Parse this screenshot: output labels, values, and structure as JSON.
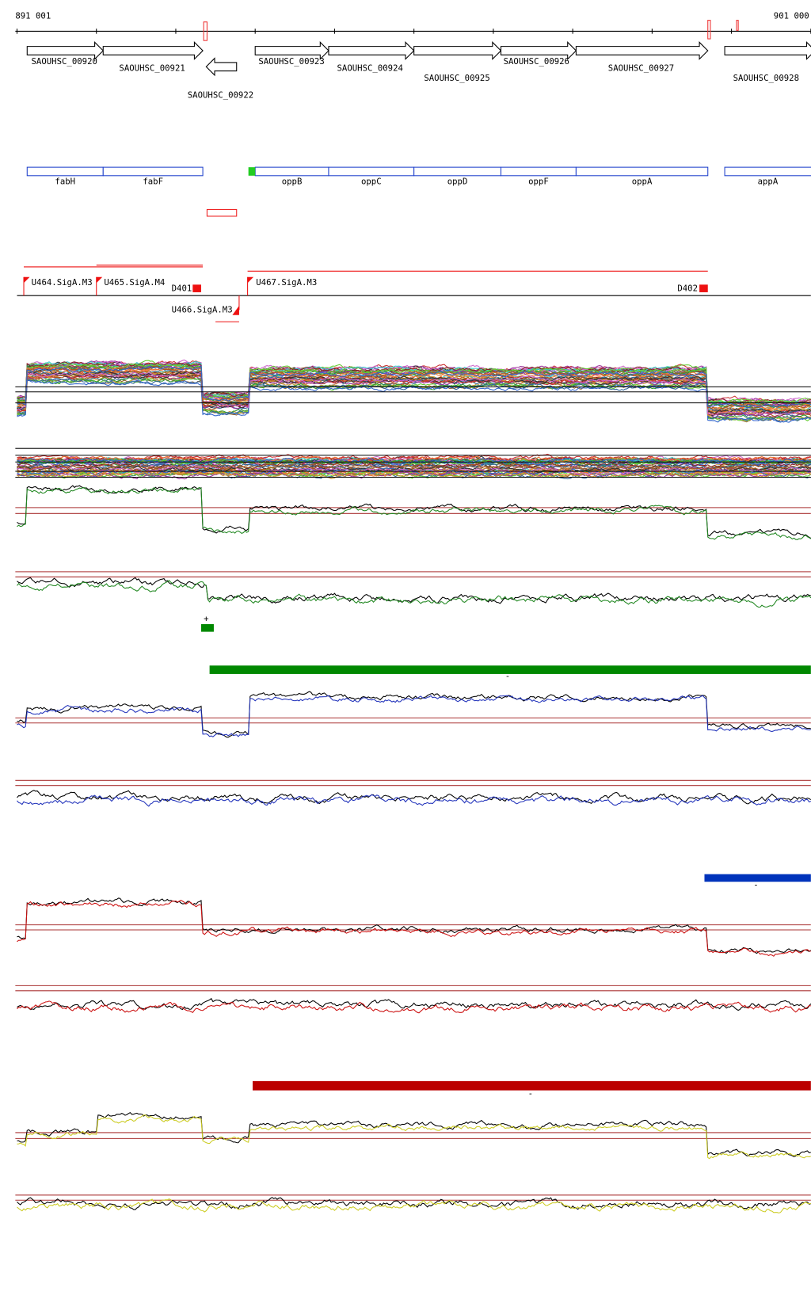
{
  "scale": {
    "start": "891 001",
    "end": "901 000"
  },
  "genes": [
    "SAOUHSC_00920",
    "SAOUHSC_00921",
    "SAOUHSC_00922",
    "SAOUHSC_00923",
    "SAOUHSC_00924",
    "SAOUHSC_00925",
    "SAOUHSC_00926",
    "SAOUHSC_00927",
    "SAOUHSC_00928"
  ],
  "gene_names": [
    "fabH",
    "fabF",
    "oppB",
    "oppC",
    "oppD",
    "oppF",
    "oppA",
    "appA"
  ],
  "promoters": [
    "U464.SigA.M3",
    "U465.SigA.M4",
    "U466.SigA.M3",
    "U467.SigA.M3"
  ],
  "terminators": [
    "D401",
    "D402"
  ],
  "strand_marks": [
    "+",
    "-",
    "-",
    "-"
  ]
}
